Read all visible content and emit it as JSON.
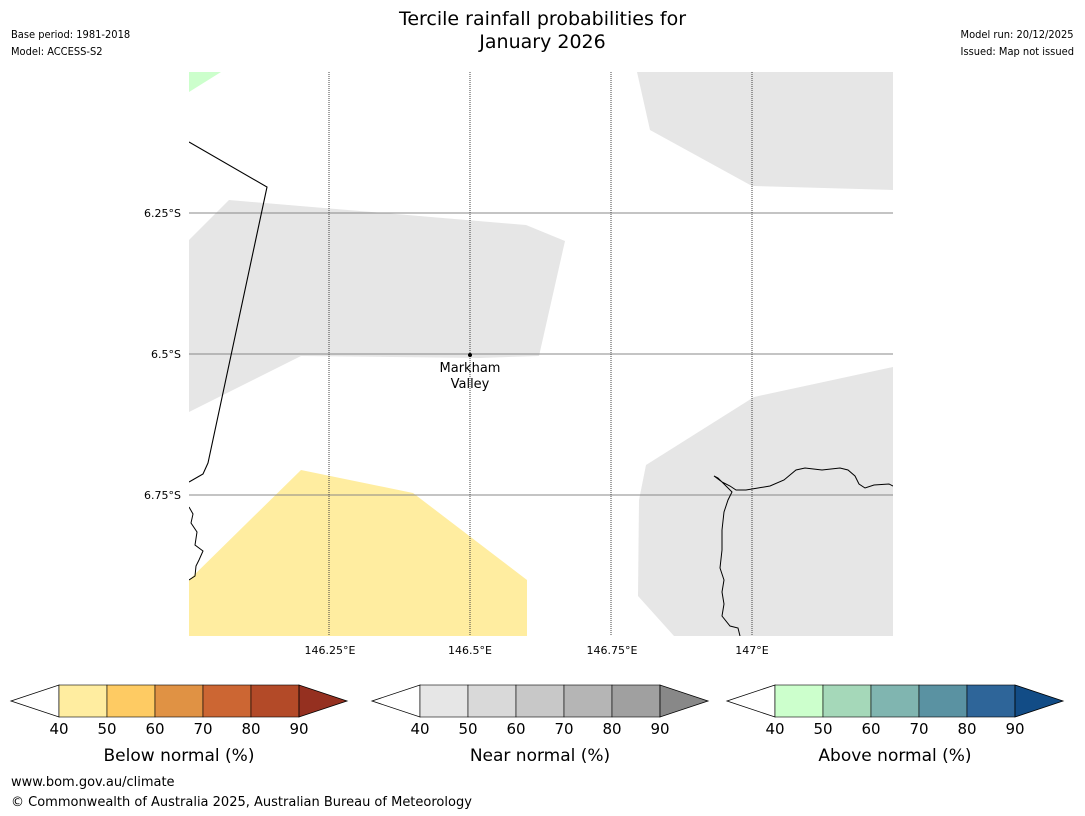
{
  "header": {
    "base_period": "Base period: 1981-2018",
    "model": "Model: ACCESS-S2",
    "title_line1": "Tercile rainfall probabilities for",
    "title_line2": "January 2026",
    "model_run": "Model run: 20/12/2025",
    "issued": "Issued: Map not issued"
  },
  "map": {
    "lat_labels": [
      "6.25°S",
      "6.5°S",
      "6.75°S"
    ],
    "lon_labels": [
      "146.25°E",
      "146.5°E",
      "146.75°E",
      "147°E"
    ],
    "location": {
      "name_line1": "Markham",
      "name_line2": "Valley"
    },
    "regions": [
      {
        "category": "above-normal",
        "range": "40-50",
        "color": "#ccffcc"
      },
      {
        "category": "near-normal",
        "range": "40-50",
        "color": "#e6e6e6"
      },
      {
        "category": "below-normal",
        "range": "40-50",
        "color": "#ffeda0"
      }
    ]
  },
  "legends": [
    {
      "label": "Below normal (%)",
      "ticks": [
        "40",
        "50",
        "60",
        "70",
        "80",
        "90"
      ],
      "colors": [
        "#ffeda0",
        "#fecb63",
        "#e09244",
        "#cc6633",
        "#b34a28",
        "#953020"
      ]
    },
    {
      "label": "Near normal (%)",
      "ticks": [
        "40",
        "50",
        "60",
        "70",
        "80",
        "90"
      ],
      "colors": [
        "#e6e6e6",
        "#d9d9d9",
        "#c8c8c8",
        "#b5b5b5",
        "#a0a0a0",
        "#888888"
      ]
    },
    {
      "label": "Above normal (%)",
      "ticks": [
        "40",
        "50",
        "60",
        "70",
        "80",
        "90"
      ],
      "colors": [
        "#ccffcc",
        "#a5d8b9",
        "#80b5b0",
        "#5a92a2",
        "#2e6599",
        "#124c86"
      ]
    }
  ],
  "footer": {
    "url": "www.bom.gov.au/climate",
    "copyright": "© Commonwealth of Australia 2025, Australian Bureau of Meteorology"
  }
}
